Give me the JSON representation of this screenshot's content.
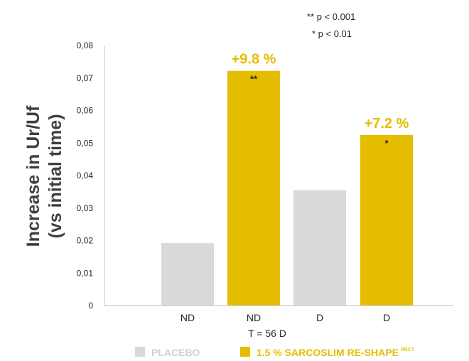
{
  "chart_data": {
    "type": "bar",
    "ylabel_line1": "Increase in Ur/Uf",
    "ylabel_line2": "(vs initial time)",
    "xlabel": "T = 56 D",
    "ylim": [
      0,
      0.08
    ],
    "yticks": [
      "0",
      "0,01",
      "0,02",
      "0,03",
      "0,04",
      "0,05",
      "0,06",
      "0,07",
      "0,08"
    ],
    "grid": false,
    "categories": [
      "ND",
      "ND",
      "D",
      "D"
    ],
    "bars": [
      {
        "category": "ND",
        "series": "PLACEBO",
        "value": 0.0192,
        "label": "",
        "significance": ""
      },
      {
        "category": "ND",
        "series": "1.5 % SARCOSLIM RE-SHAPE",
        "value": 0.0722,
        "label": "+9.8 %",
        "significance": "**"
      },
      {
        "category": "D",
        "series": "PLACEBO",
        "value": 0.0355,
        "label": "",
        "significance": ""
      },
      {
        "category": "D",
        "series": "1.5 % SARCOSLIM RE-SHAPE",
        "value": 0.0525,
        "label": "+7.2 %",
        "significance": "*"
      }
    ],
    "legend": {
      "placement": "bottom",
      "entries": [
        {
          "name": "PLACEBO",
          "superscript": "",
          "color": "#d9d9d9"
        },
        {
          "name": "1.5 % SARCOSLIM RE-SHAPE",
          "superscript": "PRCT",
          "color": "#e5bd00"
        }
      ]
    },
    "significance_notes": [
      "** p < 0.001",
      "* p < 0.01"
    ],
    "colors": {
      "placebo": "#d9d9d9",
      "active": "#e5bd00",
      "axis": "#bfbfbf",
      "text": "#262626",
      "ylabel": "#3f3f3f",
      "legend_placebo_text": "#d0d0d0"
    }
  }
}
